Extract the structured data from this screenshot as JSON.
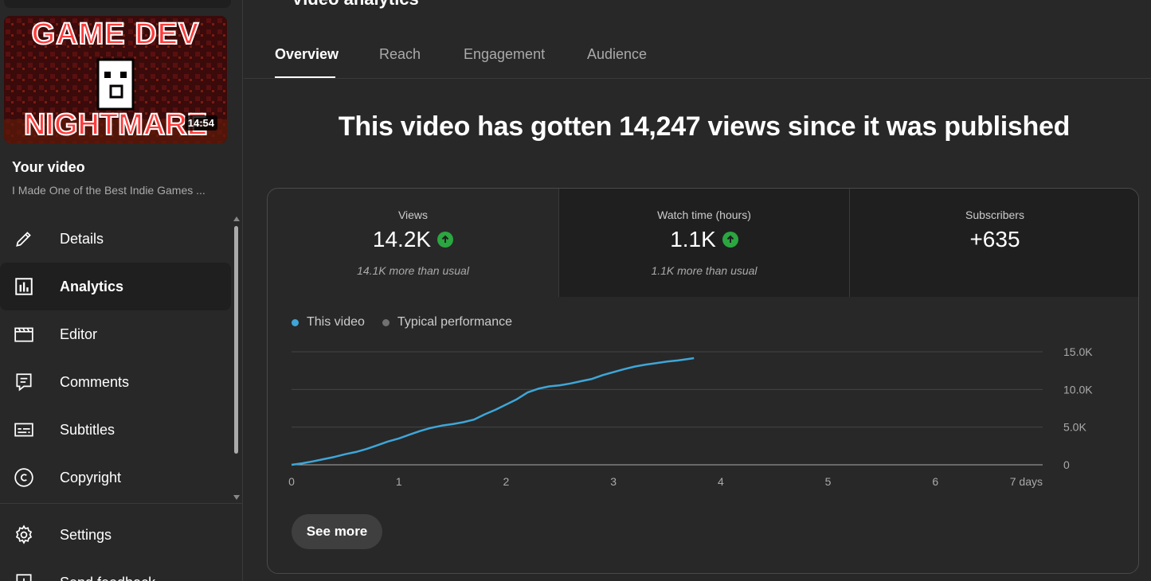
{
  "sidebar": {
    "thumbnail": {
      "line1": "GAME DEV",
      "line2": "NIGHTMARE",
      "duration": "14:54"
    },
    "your_video_label": "Your video",
    "video_title": "I Made One of the Best Indie Games ...",
    "items": [
      {
        "label": "Details",
        "icon": "pencil-icon"
      },
      {
        "label": "Analytics",
        "icon": "analytics-icon",
        "active": true
      },
      {
        "label": "Editor",
        "icon": "film-icon"
      },
      {
        "label": "Comments",
        "icon": "comment-icon"
      },
      {
        "label": "Subtitles",
        "icon": "subtitles-icon"
      },
      {
        "label": "Copyright",
        "icon": "copyright-icon"
      }
    ],
    "bottom_items": [
      {
        "label": "Settings",
        "icon": "gear-icon"
      },
      {
        "label": "Send feedback",
        "icon": "feedback-icon"
      }
    ]
  },
  "page_title": "Video analytics",
  "tabs": [
    {
      "label": "Overview",
      "active": true
    },
    {
      "label": "Reach"
    },
    {
      "label": "Engagement"
    },
    {
      "label": "Audience"
    }
  ],
  "headline": "This video has gotten 14,247 views since it was published",
  "metrics": [
    {
      "label": "Views",
      "value": "14.2K",
      "trend": "up",
      "sub": "14.1K more than usual"
    },
    {
      "label": "Watch time (hours)",
      "value": "1.1K",
      "trend": "up",
      "sub": "1.1K more than usual"
    },
    {
      "label": "Subscribers",
      "value": "+635",
      "trend": "",
      "sub": ""
    }
  ],
  "legend": [
    {
      "label": "This video",
      "color": "#3ea6d8"
    },
    {
      "label": "Typical performance",
      "color": "#717171"
    }
  ],
  "chart_data": {
    "type": "line",
    "x_ticks": [
      "0",
      "1",
      "2",
      "3",
      "4",
      "5",
      "6",
      "7 days"
    ],
    "y_ticks": [
      "0",
      "5.0K",
      "10.0K",
      "15.0K"
    ],
    "xlim": [
      0,
      7
    ],
    "ylim": [
      0,
      15000
    ],
    "series": [
      {
        "name": "This video",
        "color": "#3ea6d8",
        "x": [
          0,
          0.1,
          0.2,
          0.3,
          0.4,
          0.5,
          0.6,
          0.7,
          0.8,
          0.9,
          1.0,
          1.1,
          1.2,
          1.3,
          1.4,
          1.5,
          1.6,
          1.7,
          1.8,
          1.9,
          2.0,
          2.1,
          2.2,
          2.3,
          2.4,
          2.5,
          2.6,
          2.7,
          2.8,
          2.9,
          3.0,
          3.1,
          3.2,
          3.3,
          3.4,
          3.5,
          3.6,
          3.7,
          3.75
        ],
        "y": [
          0,
          200,
          450,
          750,
          1050,
          1400,
          1700,
          2100,
          2600,
          3100,
          3500,
          4000,
          4500,
          4900,
          5200,
          5400,
          5650,
          6000,
          6700,
          7300,
          8000,
          8700,
          9600,
          10100,
          10400,
          10550,
          10800,
          11100,
          11400,
          11900,
          12300,
          12700,
          13050,
          13300,
          13500,
          13700,
          13850,
          14050,
          14150
        ]
      }
    ]
  },
  "see_more_label": "See more"
}
